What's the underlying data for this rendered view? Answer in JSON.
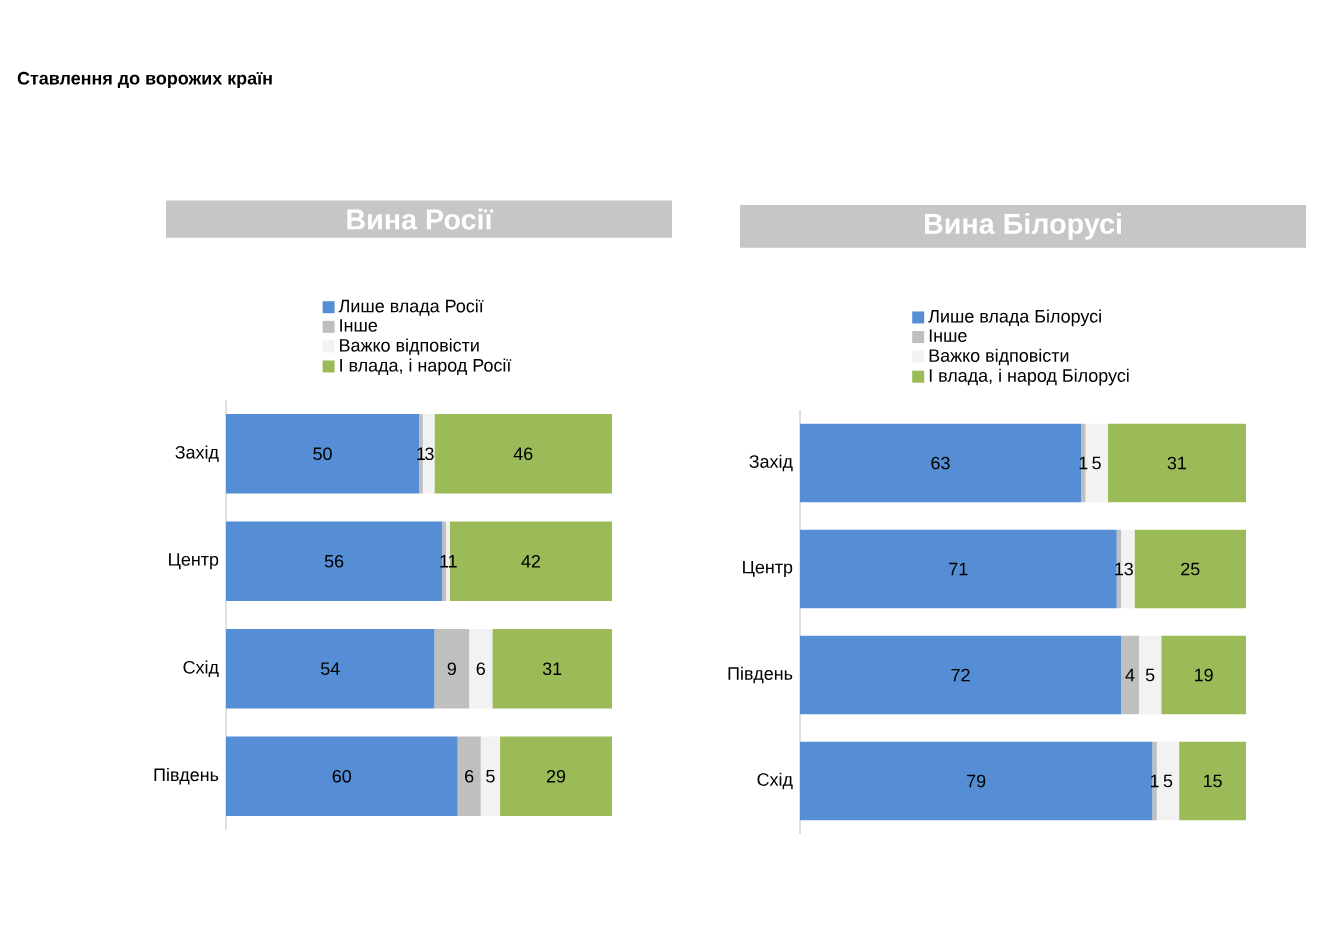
{
  "chart_data": [
    {
      "type": "bar",
      "orientation": "horizontal",
      "stacked": true,
      "title": "Вина Росії",
      "annotations": [
        "Ставлення до ворожих країн"
      ],
      "categories": [
        "Захід",
        "Центр",
        "Схід",
        "Південь"
      ],
      "series": [
        {
          "name": "Лише влада Росії",
          "color": "#558ed5",
          "values": [
            50,
            56,
            54,
            60
          ]
        },
        {
          "name": "Інше",
          "color": "#bfbfbf",
          "values": [
            1,
            1,
            9,
            6
          ]
        },
        {
          "name": "Важко відповісти",
          "color": "#f2f2f2",
          "values": [
            3,
            1,
            6,
            5
          ]
        },
        {
          "name": "І влада, і народ Росії",
          "color": "#9bbb59",
          "values": [
            46,
            42,
            31,
            29
          ]
        }
      ],
      "data_labels": true,
      "legend": "top",
      "tick_labels": "y"
    },
    {
      "type": "bar",
      "orientation": "horizontal",
      "stacked": true,
      "title": "Вина Білорусі",
      "categories": [
        "Захід",
        "Центр",
        "Південь",
        "Схід"
      ],
      "series": [
        {
          "name": "Лише влада Білорусі",
          "color": "#558ed5",
          "values": [
            63,
            71,
            72,
            79
          ]
        },
        {
          "name": "Інше",
          "color": "#bfbfbf",
          "values": [
            1,
            1,
            4,
            1
          ]
        },
        {
          "name": "Важко відповісти",
          "color": "#f2f2f2",
          "values": [
            5,
            3,
            5,
            5
          ]
        },
        {
          "name": "І влада, і народ Білорусі",
          "color": "#9bbb59",
          "values": [
            31,
            25,
            19,
            15
          ]
        }
      ],
      "data_labels": true,
      "legend": "top",
      "tick_labels": "y"
    }
  ]
}
